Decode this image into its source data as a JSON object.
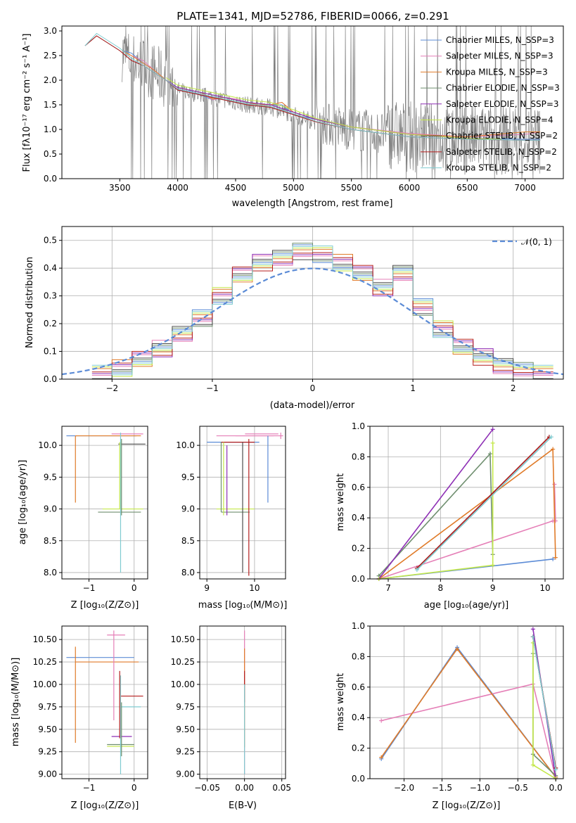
{
  "figure": {
    "title": "PLATE=1341, MJD=52786, FIBERID=0066, z=0.291"
  },
  "colors": {
    "data": "#808080",
    "series": [
      "#5b8bd6",
      "#e57fb7",
      "#e07b29",
      "#6f8f6f",
      "#8e2fb5",
      "#c4e84a",
      "#4d4d4d",
      "#b51f1f",
      "#7fcbd0"
    ]
  },
  "panel1": {
    "xlabel": "wavelength [Angstrom, rest frame]",
    "ylabel": "Flux [fλ10⁻¹⁷ erg cm⁻² s⁻¹ A⁻¹]",
    "xticks": [
      "3500",
      "4000",
      "4500",
      "5000",
      "5500",
      "6000",
      "6500",
      "7000"
    ],
    "yticks": [
      "0.0",
      "0.5",
      "1.0",
      "1.5",
      "2.0",
      "2.5",
      "3.0"
    ],
    "legend": [
      "Chabrier MILES, N_SSP=3",
      "Salpeter MILES, N_SSP=3",
      "Kroupa MILES, N_SSP=3",
      "Chabrier ELODIE, N_SSP=3",
      "Salpeter ELODIE, N_SSP=3",
      "Kroupa ELODIE, N_SSP=4",
      "Chabrier STELIB, N_SSP=2",
      "Salpeter STELIB, N_SSP=2",
      "Kroupa STELIB, N_SSP=2"
    ]
  },
  "panel2": {
    "xlabel": "(data-model)/error",
    "ylabel": "Normed distribution",
    "legend": "𝒩(0, 1)",
    "xticks": [
      "−2",
      "−1",
      "0",
      "1",
      "2"
    ],
    "yticks": [
      "0.0",
      "0.1",
      "0.2",
      "0.3",
      "0.4",
      "0.5"
    ]
  },
  "panel3": {
    "xlabel": "Z [log₁₀(Z/Z⊙)]",
    "ylabel": "age  [log₁₀(age/yr)]",
    "xticks": [
      "−1",
      "0"
    ],
    "yticks": [
      "8.0",
      "8.5",
      "9.0",
      "9.5",
      "10.0"
    ]
  },
  "panel4": {
    "xlabel": "mass [log₁₀(M/M⊙)]",
    "xticks": [
      "9",
      "10"
    ],
    "yticks": [
      "8.0",
      "8.5",
      "9.0",
      "9.5",
      "10.0"
    ]
  },
  "panel5": {
    "xlabel": "age  [log₁₀(age/yr)]",
    "ylabel": "mass weight",
    "xticks": [
      "7",
      "8",
      "9",
      "10"
    ],
    "yticks": [
      "0.0",
      "0.2",
      "0.4",
      "0.6",
      "0.8",
      "1.0"
    ]
  },
  "panel6": {
    "xlabel": "Z [log₁₀(Z/Z⊙)]",
    "ylabel": "mass [log₁₀(M/M⊙)]",
    "xticks": [
      "−1",
      "0"
    ],
    "yticks": [
      "9.00",
      "9.25",
      "9.50",
      "9.75",
      "10.00",
      "10.25",
      "10.50"
    ]
  },
  "panel7": {
    "xlabel": "E(B-V)",
    "xticks": [
      "−0.05",
      "0.00",
      "0.05"
    ],
    "yticks": [
      "9.00",
      "9.25",
      "9.50",
      "9.75",
      "10.00",
      "10.25",
      "10.50"
    ]
  },
  "panel8": {
    "xlabel": "Z [log₁₀(Z/Z⊙)]",
    "ylabel": "mass weight",
    "xticks": [
      "−2.0",
      "−1.5",
      "−1.0",
      "−0.5",
      "0.0"
    ],
    "yticks": [
      "0.0",
      "0.2",
      "0.4",
      "0.6",
      "0.8",
      "1.0"
    ]
  },
  "chart_data": [
    {
      "type": "line",
      "title": "PLATE=1341, MJD=52786, FIBERID=0066, z=0.291",
      "xlabel": "wavelength [Angstrom, rest frame]",
      "ylabel": "Flux [fλ10⁻¹⁷ erg cm⁻² s⁻¹ A⁻¹]",
      "xlim": [
        3000,
        7330
      ],
      "ylim": [
        0,
        3.1
      ],
      "grid": false,
      "legend_position": "top-right",
      "series": [
        {
          "name": "Chabrier MILES, N_SSP=3",
          "x": [
            3520,
            3600,
            3700,
            3800,
            3900,
            4000,
            4100,
            4200,
            4300,
            4400,
            4500,
            4600,
            4700,
            4800,
            4900,
            5000,
            5200,
            5500,
            6000,
            6500,
            7000,
            7130
          ],
          "y": [
            2.6,
            2.55,
            2.35,
            2.2,
            2.0,
            1.8,
            1.78,
            1.7,
            1.6,
            1.65,
            1.6,
            1.55,
            1.5,
            1.5,
            1.5,
            1.3,
            1.2,
            1.05,
            0.9,
            0.82,
            0.8,
            0.8
          ]
        },
        {
          "name": "Salpeter MILES, N_SSP=3",
          "x": [
            3520,
            3600,
            3700,
            3800,
            3900,
            4000,
            4100,
            4200,
            4300,
            4400,
            4500,
            4600,
            4700,
            4800,
            4900,
            5000,
            5200,
            5500,
            6000,
            6500,
            7000,
            7130
          ],
          "y": [
            2.6,
            2.5,
            2.4,
            2.2,
            2.0,
            1.85,
            1.8,
            1.75,
            1.6,
            1.65,
            1.62,
            1.55,
            1.5,
            1.5,
            1.55,
            1.35,
            1.2,
            1.05,
            0.92,
            0.85,
            0.9,
            0.95
          ]
        },
        {
          "name": "Kroupa MILES, N_SSP=3",
          "x": [
            3520,
            3600,
            3700,
            3800,
            3900,
            4000,
            4100,
            4200,
            4300,
            4400,
            4500,
            4600,
            4700,
            4800,
            4900,
            5000,
            5200,
            5500,
            6000,
            6500,
            7000,
            7130
          ],
          "y": [
            2.6,
            2.5,
            2.35,
            2.2,
            2.0,
            1.85,
            1.8,
            1.75,
            1.62,
            1.65,
            1.6,
            1.55,
            1.5,
            1.5,
            1.55,
            1.35,
            1.2,
            1.05,
            0.9,
            0.85,
            0.95,
            0.95
          ]
        },
        {
          "name": "Chabrier ELODIE, N_SSP=3",
          "x": [
            3900,
            4000,
            4200,
            4400,
            4600,
            4800,
            5000,
            5200,
            5500,
            6000,
            6500,
            6800
          ],
          "y": [
            2.0,
            1.85,
            1.75,
            1.65,
            1.55,
            1.5,
            1.35,
            1.2,
            1.05,
            0.9,
            0.82,
            0.8
          ]
        },
        {
          "name": "Salpeter ELODIE, N_SSP=3",
          "x": [
            3900,
            4000,
            4200,
            4400,
            4600,
            4800,
            5000,
            5200,
            5500,
            6000,
            6500,
            6800
          ],
          "y": [
            2.0,
            1.85,
            1.75,
            1.65,
            1.55,
            1.5,
            1.35,
            1.2,
            1.05,
            0.9,
            0.82,
            0.8
          ]
        },
        {
          "name": "Kroupa ELODIE, N_SSP=4",
          "x": [
            3900,
            4000,
            4200,
            4400,
            4600,
            4800,
            5000,
            5200,
            5500,
            6000,
            6500,
            6800
          ],
          "y": [
            2.05,
            1.9,
            1.8,
            1.7,
            1.6,
            1.55,
            1.4,
            1.22,
            1.05,
            0.9,
            0.82,
            0.8
          ]
        },
        {
          "name": "Chabrier STELIB, N_SSP=2",
          "x": [
            3200,
            3300,
            3400,
            3500,
            3600,
            3700,
            3800,
            3900,
            4000,
            4200,
            4400,
            4600,
            4800,
            5000,
            5200,
            5500,
            6000,
            6500,
            7000,
            7130
          ],
          "y": [
            2.7,
            2.9,
            2.75,
            2.6,
            2.4,
            2.3,
            2.15,
            2.0,
            1.8,
            1.7,
            1.6,
            1.5,
            1.45,
            1.3,
            1.15,
            1.0,
            0.85,
            0.8,
            0.78,
            0.78
          ]
        },
        {
          "name": "Salpeter STELIB, N_SSP=2",
          "x": [
            3200,
            3300,
            3400,
            3500,
            3600,
            3700,
            3800,
            3900,
            4000,
            4200,
            4400,
            4600,
            4800,
            5000,
            5200,
            5500,
            6000,
            6500,
            7000,
            7130
          ],
          "y": [
            2.7,
            2.9,
            2.75,
            2.6,
            2.4,
            2.3,
            2.15,
            2.0,
            1.8,
            1.7,
            1.6,
            1.5,
            1.45,
            1.3,
            1.15,
            1.0,
            0.85,
            0.8,
            0.78,
            0.78
          ]
        },
        {
          "name": "Kroupa STELIB, N_SSP=2",
          "x": [
            3200,
            3300,
            3400,
            3500,
            3600,
            3700,
            3800,
            3900,
            4000,
            4200,
            4400,
            4600,
            4800,
            5000,
            5200,
            5500,
            6000,
            6500,
            7000,
            7130
          ],
          "y": [
            2.7,
            2.95,
            2.8,
            2.65,
            2.45,
            2.3,
            2.15,
            2.0,
            1.82,
            1.72,
            1.62,
            1.52,
            1.47,
            1.32,
            1.16,
            1.0,
            0.85,
            0.8,
            0.78,
            0.78
          ]
        }
      ]
    },
    {
      "type": "line",
      "xlabel": "(data-model)/error",
      "ylabel": "Normed distribution",
      "xlim": [
        -2.5,
        2.5
      ],
      "ylim": [
        0,
        0.55
      ],
      "grid": true,
      "legend_position": "top-right",
      "series": [
        {
          "name": "𝒩(0, 1)",
          "x": [
            -2.5,
            -2.0,
            -1.5,
            -1.0,
            -0.5,
            0,
            0.5,
            1.0,
            1.5,
            2.0,
            2.5
          ],
          "y": [
            0.018,
            0.054,
            0.13,
            0.242,
            0.352,
            0.399,
            0.352,
            0.242,
            0.13,
            0.054,
            0.018
          ]
        },
        {
          "x": [
            -2.1,
            -1.9,
            -1.7,
            -1.5,
            -1.3,
            -1.1,
            -0.9,
            -0.7,
            -0.5,
            -0.3,
            -0.1,
            0.1,
            0.3,
            0.5,
            0.7,
            0.9,
            1.1,
            1.3,
            1.5,
            1.7,
            1.9,
            2.1,
            2.3
          ],
          "y": [
            0.02,
            0.04,
            0.07,
            0.11,
            0.16,
            0.22,
            0.3,
            0.38,
            0.42,
            0.44,
            0.46,
            0.45,
            0.42,
            0.38,
            0.33,
            0.38,
            0.26,
            0.18,
            0.12,
            0.08,
            0.05,
            0.03,
            0.02
          ]
        }
      ]
    },
    {
      "type": "scatter",
      "xlabel": "Z [log₁₀(Z/Z⊙)]",
      "ylabel": "age  [log₁₀(age/yr)]",
      "xlim": [
        -1.6,
        0.3
      ],
      "ylim": [
        7.9,
        10.3
      ],
      "grid": true,
      "points": [
        [
          -1.3,
          10.15
        ],
        [
          -0.3,
          10.15
        ],
        [
          -0.3,
          9.0
        ],
        [
          -0.3,
          8.95
        ],
        [
          -0.3,
          10.03
        ]
      ]
    },
    {
      "type": "scatter",
      "xlabel": "mass [log₁₀(M/M⊙)]",
      "xlim": [
        8.85,
        10.65
      ],
      "ylim": [
        7.9,
        10.3
      ],
      "grid": true,
      "points": [
        [
          9.4,
          9.0
        ],
        [
          9.8,
          10.05
        ],
        [
          10.2,
          10.15
        ],
        [
          9.3,
          10.05
        ],
        [
          9.9,
          8.95
        ]
      ]
    },
    {
      "type": "line",
      "xlabel": "age  [log₁₀(age/yr)]",
      "ylabel": "mass weight",
      "xlim": [
        6.65,
        10.35
      ],
      "ylim": [
        0,
        1.0
      ],
      "grid": true,
      "series": [
        {
          "x": [
            6.82,
            10.15
          ],
          "y": [
            0.0,
            0.13
          ]
        },
        {
          "x": [
            6.82,
            10.15,
            10.2,
            10.18
          ],
          "y": [
            0.0,
            0.38,
            0.38,
            0.62
          ]
        },
        {
          "x": [
            6.82,
            10.15,
            10.2
          ],
          "y": [
            0.0,
            0.85,
            0.14
          ]
        },
        {
          "x": [
            6.82,
            8.95,
            9.0
          ],
          "y": [
            0.02,
            0.82,
            0.16
          ]
        },
        {
          "x": [
            6.82,
            9.0
          ],
          "y": [
            0.0,
            0.98
          ]
        },
        {
          "x": [
            6.82,
            9.0,
            9.0,
            9.0
          ],
          "y": [
            0.0,
            0.09,
            0.89,
            0.09
          ]
        },
        {
          "x": [
            7.55,
            10.08
          ],
          "y": [
            0.07,
            0.93
          ]
        },
        {
          "x": [
            7.55,
            10.08
          ],
          "y": [
            0.07,
            0.93
          ]
        },
        {
          "x": [
            7.55,
            10.12
          ],
          "y": [
            0.06,
            0.93
          ]
        }
      ]
    },
    {
      "type": "scatter",
      "xlabel": "Z [log₁₀(Z/Z⊙)]",
      "ylabel": "mass [log₁₀(M/M⊙)]",
      "xlim": [
        -1.6,
        0.3
      ],
      "ylim": [
        8.95,
        10.65
      ],
      "grid": true,
      "points": [
        [
          -1.3,
          10.3
        ],
        [
          -1.3,
          10.25
        ],
        [
          -0.3,
          9.32
        ],
        [
          -0.3,
          9.75
        ],
        [
          -0.3,
          9.88
        ],
        [
          -0.3,
          9.42
        ]
      ]
    },
    {
      "type": "scatter",
      "xlabel": "E(B-V)",
      "xlim": [
        -0.06,
        0.055
      ],
      "ylim": [
        8.95,
        10.65
      ],
      "grid": true,
      "points": [
        [
          0.0,
          10.1
        ],
        [
          0.0,
          10.0
        ],
        [
          0.0,
          9.9
        ]
      ]
    },
    {
      "type": "line",
      "xlabel": "Z [log₁₀(Z/Z⊙)]",
      "ylabel": "mass weight",
      "xlim": [
        -2.45,
        0.1
      ],
      "ylim": [
        0,
        1.0
      ],
      "grid": true,
      "series": [
        {
          "x": [
            -2.3,
            -1.3,
            0.0
          ],
          "y": [
            0.13,
            0.86,
            0.01
          ]
        },
        {
          "x": [
            -2.3,
            -0.3,
            0.0
          ],
          "y": [
            0.38,
            0.62,
            0.0
          ]
        },
        {
          "x": [
            -2.3,
            -1.3,
            0.0
          ],
          "y": [
            0.14,
            0.85,
            0.01
          ]
        },
        {
          "x": [
            -0.3,
            -0.3,
            0.0
          ],
          "y": [
            0.82,
            0.16,
            0.02
          ]
        },
        {
          "x": [
            -0.3,
            0.0
          ],
          "y": [
            0.98,
            0.0
          ]
        },
        {
          "x": [
            -0.3,
            -0.3,
            0.0
          ],
          "y": [
            0.89,
            0.09,
            0.0
          ]
        },
        {
          "x": [
            -0.3,
            0.0
          ],
          "y": [
            0.93,
            0.07
          ]
        },
        {
          "x": [
            -0.3,
            0.0
          ],
          "y": [
            0.93,
            0.07
          ]
        },
        {
          "x": [
            -0.3,
            0.0
          ],
          "y": [
            0.93,
            0.06
          ]
        }
      ]
    }
  ]
}
